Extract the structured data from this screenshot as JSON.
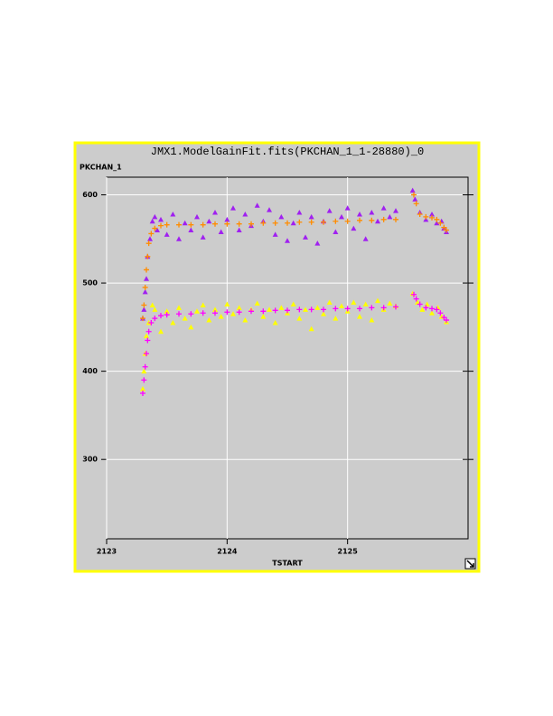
{
  "chart_data": {
    "type": "scatter",
    "title": "JMX1.ModelGainFit.fits(PKCHAN_1_1-28880)_0",
    "x_label": "TSTART",
    "y_label": "PKCHAN_1",
    "xlim": [
      2123,
      2126
    ],
    "ylim": [
      210,
      620
    ],
    "xticks": [
      2123,
      2124,
      2125
    ],
    "yticks": [
      300,
      400,
      500,
      600
    ],
    "grid": true,
    "series": [
      {
        "color": "#a020f0",
        "marker": "triangle",
        "x": [
          2123.3,
          2123.31,
          2123.32,
          2123.33,
          2123.34,
          2123.36,
          2123.38,
          2123.4,
          2123.42,
          2123.45,
          2123.5,
          2123.55,
          2123.6,
          2123.65,
          2123.7,
          2123.75,
          2123.8,
          2123.85,
          2123.9,
          2123.95,
          2124.0,
          2124.05,
          2124.1,
          2124.15,
          2124.2,
          2124.25,
          2124.3,
          2124.35,
          2124.4,
          2124.45,
          2124.5,
          2124.55,
          2124.6,
          2124.65,
          2124.7,
          2124.75,
          2124.8,
          2124.85,
          2124.9,
          2124.95,
          2125.0,
          2125.05,
          2125.1,
          2125.15,
          2125.2,
          2125.25,
          2125.3,
          2125.35,
          2125.4,
          2125.54,
          2125.56,
          2125.6,
          2125.65,
          2125.7,
          2125.74,
          2125.78,
          2125.8,
          2125.82
        ],
        "values": [
          460,
          470,
          490,
          505,
          530,
          550,
          570,
          575,
          560,
          572,
          555,
          578,
          550,
          568,
          560,
          575,
          552,
          570,
          580,
          558,
          572,
          585,
          560,
          578,
          565,
          588,
          570,
          583,
          555,
          575,
          548,
          568,
          580,
          552,
          575,
          545,
          570,
          582,
          558,
          575,
          585,
          562,
          578,
          550,
          580,
          570,
          585,
          575,
          582,
          605,
          595,
          580,
          572,
          578,
          568,
          570,
          562,
          558
        ]
      },
      {
        "color": "#ffff00",
        "marker": "triangle",
        "x": [
          2123.3,
          2123.31,
          2123.32,
          2123.33,
          2123.35,
          2123.38,
          2123.4,
          2123.45,
          2123.5,
          2123.55,
          2123.6,
          2123.65,
          2123.7,
          2123.75,
          2123.8,
          2123.85,
          2123.9,
          2123.95,
          2124.0,
          2124.05,
          2124.1,
          2124.15,
          2124.2,
          2124.25,
          2124.3,
          2124.35,
          2124.4,
          2124.45,
          2124.5,
          2124.55,
          2124.6,
          2124.65,
          2124.7,
          2124.75,
          2124.8,
          2124.85,
          2124.9,
          2124.95,
          2125.0,
          2125.05,
          2125.1,
          2125.15,
          2125.2,
          2125.25,
          2125.3,
          2125.35,
          2125.4,
          2125.54,
          2125.58,
          2125.62,
          2125.66,
          2125.7,
          2125.75,
          2125.78,
          2125.82
        ],
        "values": [
          380,
          400,
          420,
          440,
          455,
          475,
          470,
          445,
          468,
          455,
          472,
          460,
          450,
          468,
          475,
          458,
          470,
          462,
          476,
          465,
          472,
          458,
          470,
          477,
          462,
          470,
          455,
          472,
          466,
          476,
          460,
          470,
          448,
          472,
          465,
          478,
          460,
          474,
          468,
          478,
          462,
          476,
          458,
          480,
          470,
          477,
          474,
          488,
          478,
          470,
          476,
          466,
          472,
          462,
          456
        ]
      },
      {
        "color": "#ff8c00",
        "marker": "plus",
        "x": [
          2123.3,
          2123.31,
          2123.32,
          2123.33,
          2123.34,
          2123.35,
          2123.37,
          2123.4,
          2123.45,
          2123.5,
          2123.6,
          2123.7,
          2123.8,
          2123.9,
          2124.0,
          2124.1,
          2124.2,
          2124.3,
          2124.4,
          2124.5,
          2124.6,
          2124.7,
          2124.8,
          2124.9,
          2125.0,
          2125.1,
          2125.2,
          2125.3,
          2125.4,
          2125.55,
          2125.57,
          2125.6,
          2125.65,
          2125.7,
          2125.74,
          2125.77,
          2125.8,
          2125.82
        ],
        "values": [
          460,
          475,
          495,
          515,
          530,
          545,
          556,
          562,
          565,
          566,
          566,
          566,
          566,
          567,
          567,
          567,
          567,
          568,
          568,
          568,
          569,
          569,
          569,
          570,
          570,
          571,
          571,
          572,
          572,
          600,
          590,
          578,
          575,
          574,
          572,
          568,
          563,
          560
        ]
      },
      {
        "color": "#ff00ff",
        "marker": "plus",
        "x": [
          2123.3,
          2123.31,
          2123.32,
          2123.33,
          2123.34,
          2123.35,
          2123.37,
          2123.4,
          2123.45,
          2123.5,
          2123.6,
          2123.7,
          2123.8,
          2123.9,
          2124.0,
          2124.1,
          2124.2,
          2124.3,
          2124.4,
          2124.5,
          2124.6,
          2124.7,
          2124.8,
          2124.9,
          2125.0,
          2125.1,
          2125.2,
          2125.3,
          2125.4,
          2125.55,
          2125.57,
          2125.6,
          2125.65,
          2125.7,
          2125.74,
          2125.77,
          2125.8,
          2125.82
        ],
        "values": [
          375,
          390,
          405,
          420,
          435,
          445,
          455,
          460,
          463,
          464,
          465,
          465,
          466,
          466,
          467,
          467,
          468,
          468,
          469,
          469,
          470,
          470,
          470,
          471,
          471,
          471,
          472,
          472,
          473,
          487,
          482,
          476,
          472,
          471,
          470,
          466,
          461,
          458
        ]
      }
    ]
  }
}
